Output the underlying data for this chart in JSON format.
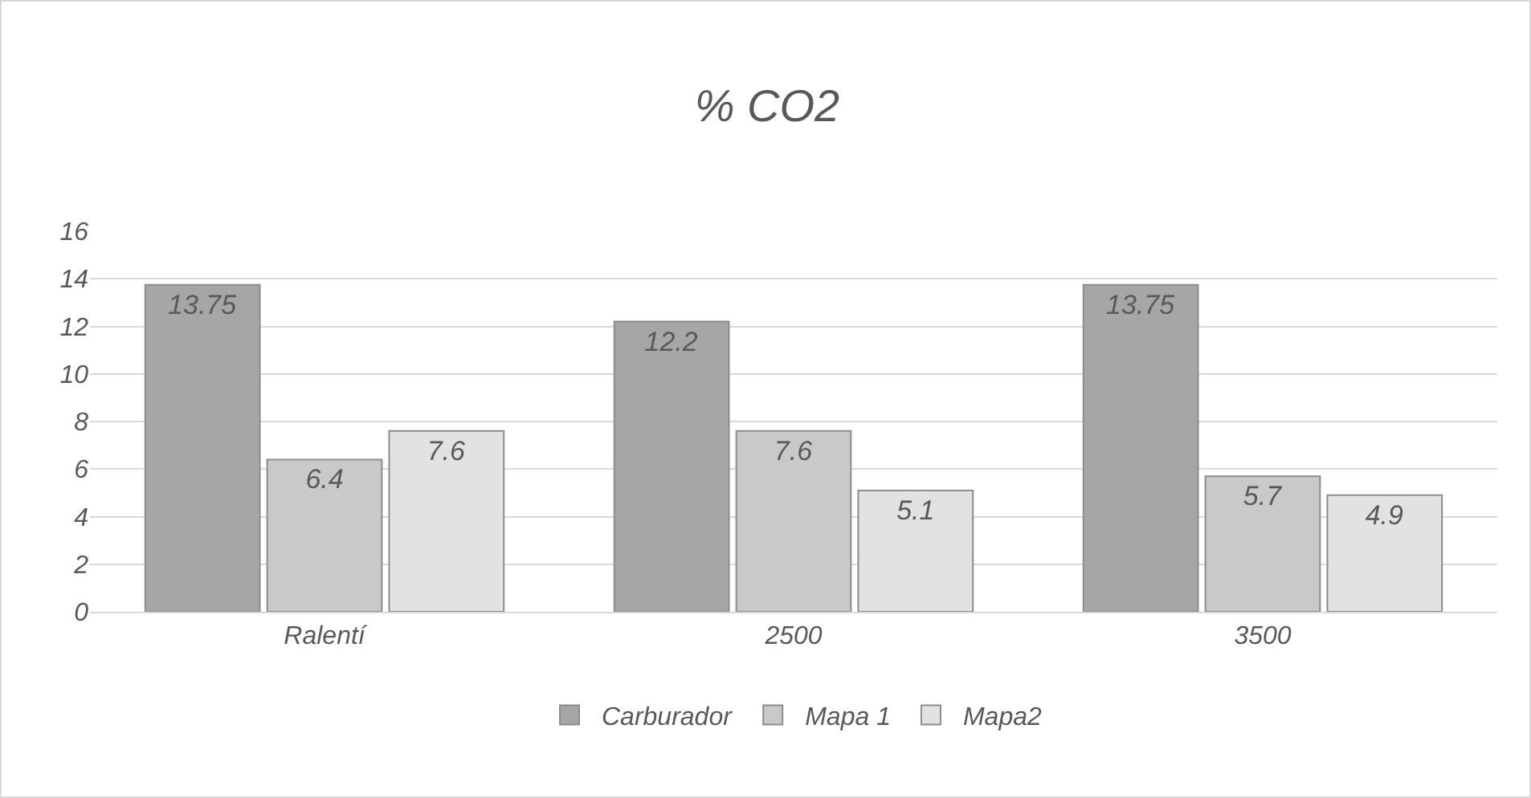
{
  "chart_data": {
    "type": "bar",
    "title": "% CO2",
    "categories": [
      "Ralentí",
      "2500",
      "3500"
    ],
    "series": [
      {
        "name": "Carburador",
        "color": "#a6a6a6",
        "values": [
          13.75,
          12.2,
          13.75
        ]
      },
      {
        "name": "Mapa 1",
        "color": "#c9c9c9",
        "values": [
          6.4,
          7.6,
          5.7
        ]
      },
      {
        "name": "Mapa2",
        "color": "#e2e2e2",
        "values": [
          7.6,
          5.1,
          4.9
        ]
      }
    ],
    "ylim": [
      0,
      16
    ],
    "yticks": [
      0,
      2,
      4,
      6,
      8,
      10,
      12,
      14,
      16
    ],
    "grid": "y",
    "legend": "bottom",
    "data_labels": true
  }
}
